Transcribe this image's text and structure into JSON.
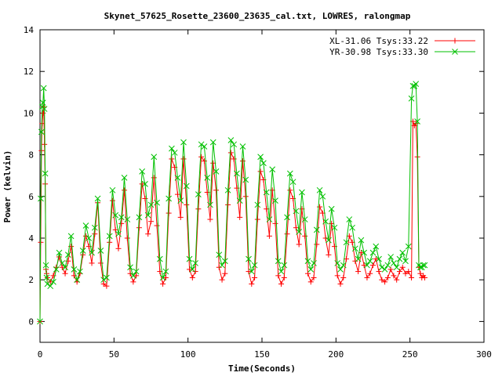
{
  "chart_data": {
    "type": "line",
    "title": "Skynet_57625_Rosette_23600_23635_cal.txt, LOWRES, ralongmap",
    "xlabel": "Time(Seconds)",
    "ylabel": "Power (kelvin)",
    "xlim": [
      0,
      300
    ],
    "ylim": [
      -1,
      14
    ],
    "xticks": [
      0,
      50,
      100,
      150,
      200,
      250,
      300
    ],
    "yticks": [
      0,
      2,
      4,
      6,
      8,
      10,
      12,
      14
    ],
    "legend_position": "top-right",
    "grid": false,
    "series": [
      {
        "name": "XL-31.06 Tsys:33.22",
        "color": "#ff0000",
        "marker": "plus",
        "x": [
          0,
          0.5,
          1,
          1.5,
          2,
          2.5,
          3,
          3.5,
          4,
          4.5,
          5,
          7,
          9,
          11,
          13,
          15,
          17,
          19,
          21,
          23,
          25,
          27,
          29,
          31,
          33,
          35,
          37,
          39,
          41,
          43,
          45,
          47,
          49,
          51,
          53,
          55,
          57,
          59,
          61,
          63,
          65,
          67,
          69,
          71,
          73,
          75,
          77,
          79,
          81,
          83,
          85,
          87,
          89,
          91,
          93,
          95,
          97,
          99,
          101,
          103,
          105,
          107,
          109,
          111,
          113,
          115,
          117,
          119,
          121,
          123,
          125,
          127,
          129,
          131,
          133,
          135,
          137,
          139,
          141,
          143,
          145,
          147,
          149,
          151,
          153,
          155,
          157,
          159,
          161,
          163,
          165,
          167,
          169,
          171,
          173,
          175,
          177,
          179,
          181,
          183,
          185,
          187,
          189,
          191,
          193,
          195,
          197,
          199,
          201,
          203,
          205,
          207,
          209,
          211,
          213,
          215,
          217,
          219,
          221,
          223,
          225,
          227,
          229,
          231,
          233,
          235,
          237,
          239,
          241,
          243,
          245,
          247,
          249,
          251,
          252,
          253,
          254,
          255,
          256,
          257,
          258,
          259,
          260
        ],
        "y": [
          0,
          3.8,
          8.2,
          9.5,
          10,
          10.3,
          8.5,
          6.6,
          2.5,
          2.3,
          2.1,
          1.9,
          2.2,
          2.6,
          3.1,
          2.6,
          2.3,
          2.9,
          3.6,
          2.2,
          1.9,
          2.3,
          3.2,
          4.1,
          3.6,
          2.8,
          4.2,
          5.7,
          2.8,
          1.8,
          1.7,
          3.8,
          5.8,
          4.4,
          3.5,
          4.7,
          6.3,
          4.0,
          2.3,
          1.9,
          2.2,
          4.5,
          6.6,
          5.9,
          4.2,
          4.8,
          6.9,
          4.6,
          2.4,
          1.8,
          2.1,
          5.2,
          7.8,
          7.4,
          6.1,
          5.0,
          7.8,
          5.6,
          2.5,
          2.1,
          2.4,
          5.4,
          7.9,
          7.7,
          6.2,
          4.9,
          7.6,
          6.3,
          2.6,
          2.0,
          2.3,
          5.6,
          8.1,
          7.8,
          6.4,
          5.0,
          7.7,
          6.0,
          2.4,
          1.8,
          2.1,
          4.9,
          7.2,
          6.8,
          5.4,
          4.1,
          6.3,
          4.7,
          2.2,
          1.8,
          2.1,
          4.2,
          6.3,
          5.9,
          4.5,
          3.7,
          5.4,
          4.1,
          2.3,
          1.9,
          2.1,
          3.7,
          5.5,
          5.2,
          4.0,
          3.2,
          4.7,
          3.6,
          2.2,
          1.8,
          2.1,
          3.0,
          4.1,
          3.8,
          2.9,
          2.4,
          3.3,
          2.7,
          2.1,
          2.3,
          2.7,
          3.0,
          2.4,
          2.0,
          1.9,
          2.1,
          2.5,
          2.2,
          2.0,
          2.4,
          2.6,
          2.3,
          2.4,
          2.1,
          9.6,
          9.4,
          9.5,
          7.9,
          2.6,
          2.3,
          2.1,
          2.2,
          2.1
        ]
      },
      {
        "name": "YR-30.98 Tsys:33.30",
        "color": "#00c000",
        "marker": "x",
        "x": [
          0,
          0.5,
          1,
          1.5,
          2,
          2.5,
          3,
          3.5,
          4,
          4.5,
          5,
          7,
          9,
          11,
          13,
          15,
          17,
          19,
          21,
          23,
          25,
          27,
          29,
          31,
          33,
          35,
          37,
          39,
          41,
          43,
          45,
          47,
          49,
          51,
          53,
          55,
          57,
          59,
          61,
          63,
          65,
          67,
          69,
          71,
          73,
          75,
          77,
          79,
          81,
          83,
          85,
          87,
          89,
          91,
          93,
          95,
          97,
          99,
          101,
          103,
          105,
          107,
          109,
          111,
          113,
          115,
          117,
          119,
          121,
          123,
          125,
          127,
          129,
          131,
          133,
          135,
          137,
          139,
          141,
          143,
          145,
          147,
          149,
          151,
          153,
          155,
          157,
          159,
          161,
          163,
          165,
          167,
          169,
          171,
          173,
          175,
          177,
          179,
          181,
          183,
          185,
          187,
          189,
          191,
          193,
          195,
          197,
          199,
          201,
          203,
          205,
          207,
          209,
          211,
          213,
          215,
          217,
          219,
          221,
          223,
          225,
          227,
          229,
          231,
          233,
          235,
          237,
          239,
          241,
          243,
          245,
          247,
          249,
          251,
          252,
          253,
          254,
          255,
          256,
          257,
          258,
          259,
          260
        ],
        "y": [
          0,
          5.9,
          9.1,
          10.3,
          10.5,
          11.2,
          10.2,
          7.1,
          2.7,
          2.1,
          1.8,
          1.7,
          1.9,
          2.5,
          3.3,
          2.8,
          2.6,
          3.2,
          4.1,
          2.5,
          2.0,
          2.4,
          3.4,
          4.6,
          4.0,
          3.3,
          4.5,
          5.9,
          3.4,
          2.0,
          2.1,
          4.1,
          6.3,
          5.1,
          4.2,
          5.0,
          6.9,
          4.9,
          2.6,
          2.2,
          2.4,
          5.0,
          7.2,
          6.6,
          5.1,
          5.6,
          7.9,
          5.7,
          3.0,
          2.1,
          2.4,
          5.9,
          8.3,
          8.1,
          6.9,
          5.8,
          8.6,
          6.5,
          3.0,
          2.5,
          2.8,
          6.1,
          8.5,
          8.4,
          6.9,
          5.6,
          8.6,
          7.2,
          3.2,
          2.7,
          2.9,
          6.3,
          8.7,
          8.5,
          7.1,
          5.8,
          8.4,
          6.8,
          3.0,
          2.4,
          2.7,
          5.6,
          7.9,
          7.6,
          6.2,
          4.9,
          7.3,
          5.8,
          2.9,
          2.4,
          2.7,
          5.0,
          7.1,
          6.7,
          5.3,
          4.3,
          6.2,
          4.9,
          2.9,
          2.5,
          2.8,
          4.4,
          6.3,
          6.0,
          4.8,
          3.9,
          5.4,
          4.5,
          2.8,
          2.5,
          2.7,
          3.8,
          4.9,
          4.5,
          3.5,
          3.0,
          3.9,
          3.3,
          2.7,
          2.9,
          3.3,
          3.6,
          3.0,
          2.6,
          2.5,
          2.7,
          3.1,
          2.8,
          2.6,
          3.0,
          3.3,
          2.9,
          3.6,
          10.7,
          11.3,
          11.3,
          11.4,
          9.6,
          2.7,
          2.6,
          2.6,
          2.7,
          2.7
        ]
      }
    ]
  }
}
